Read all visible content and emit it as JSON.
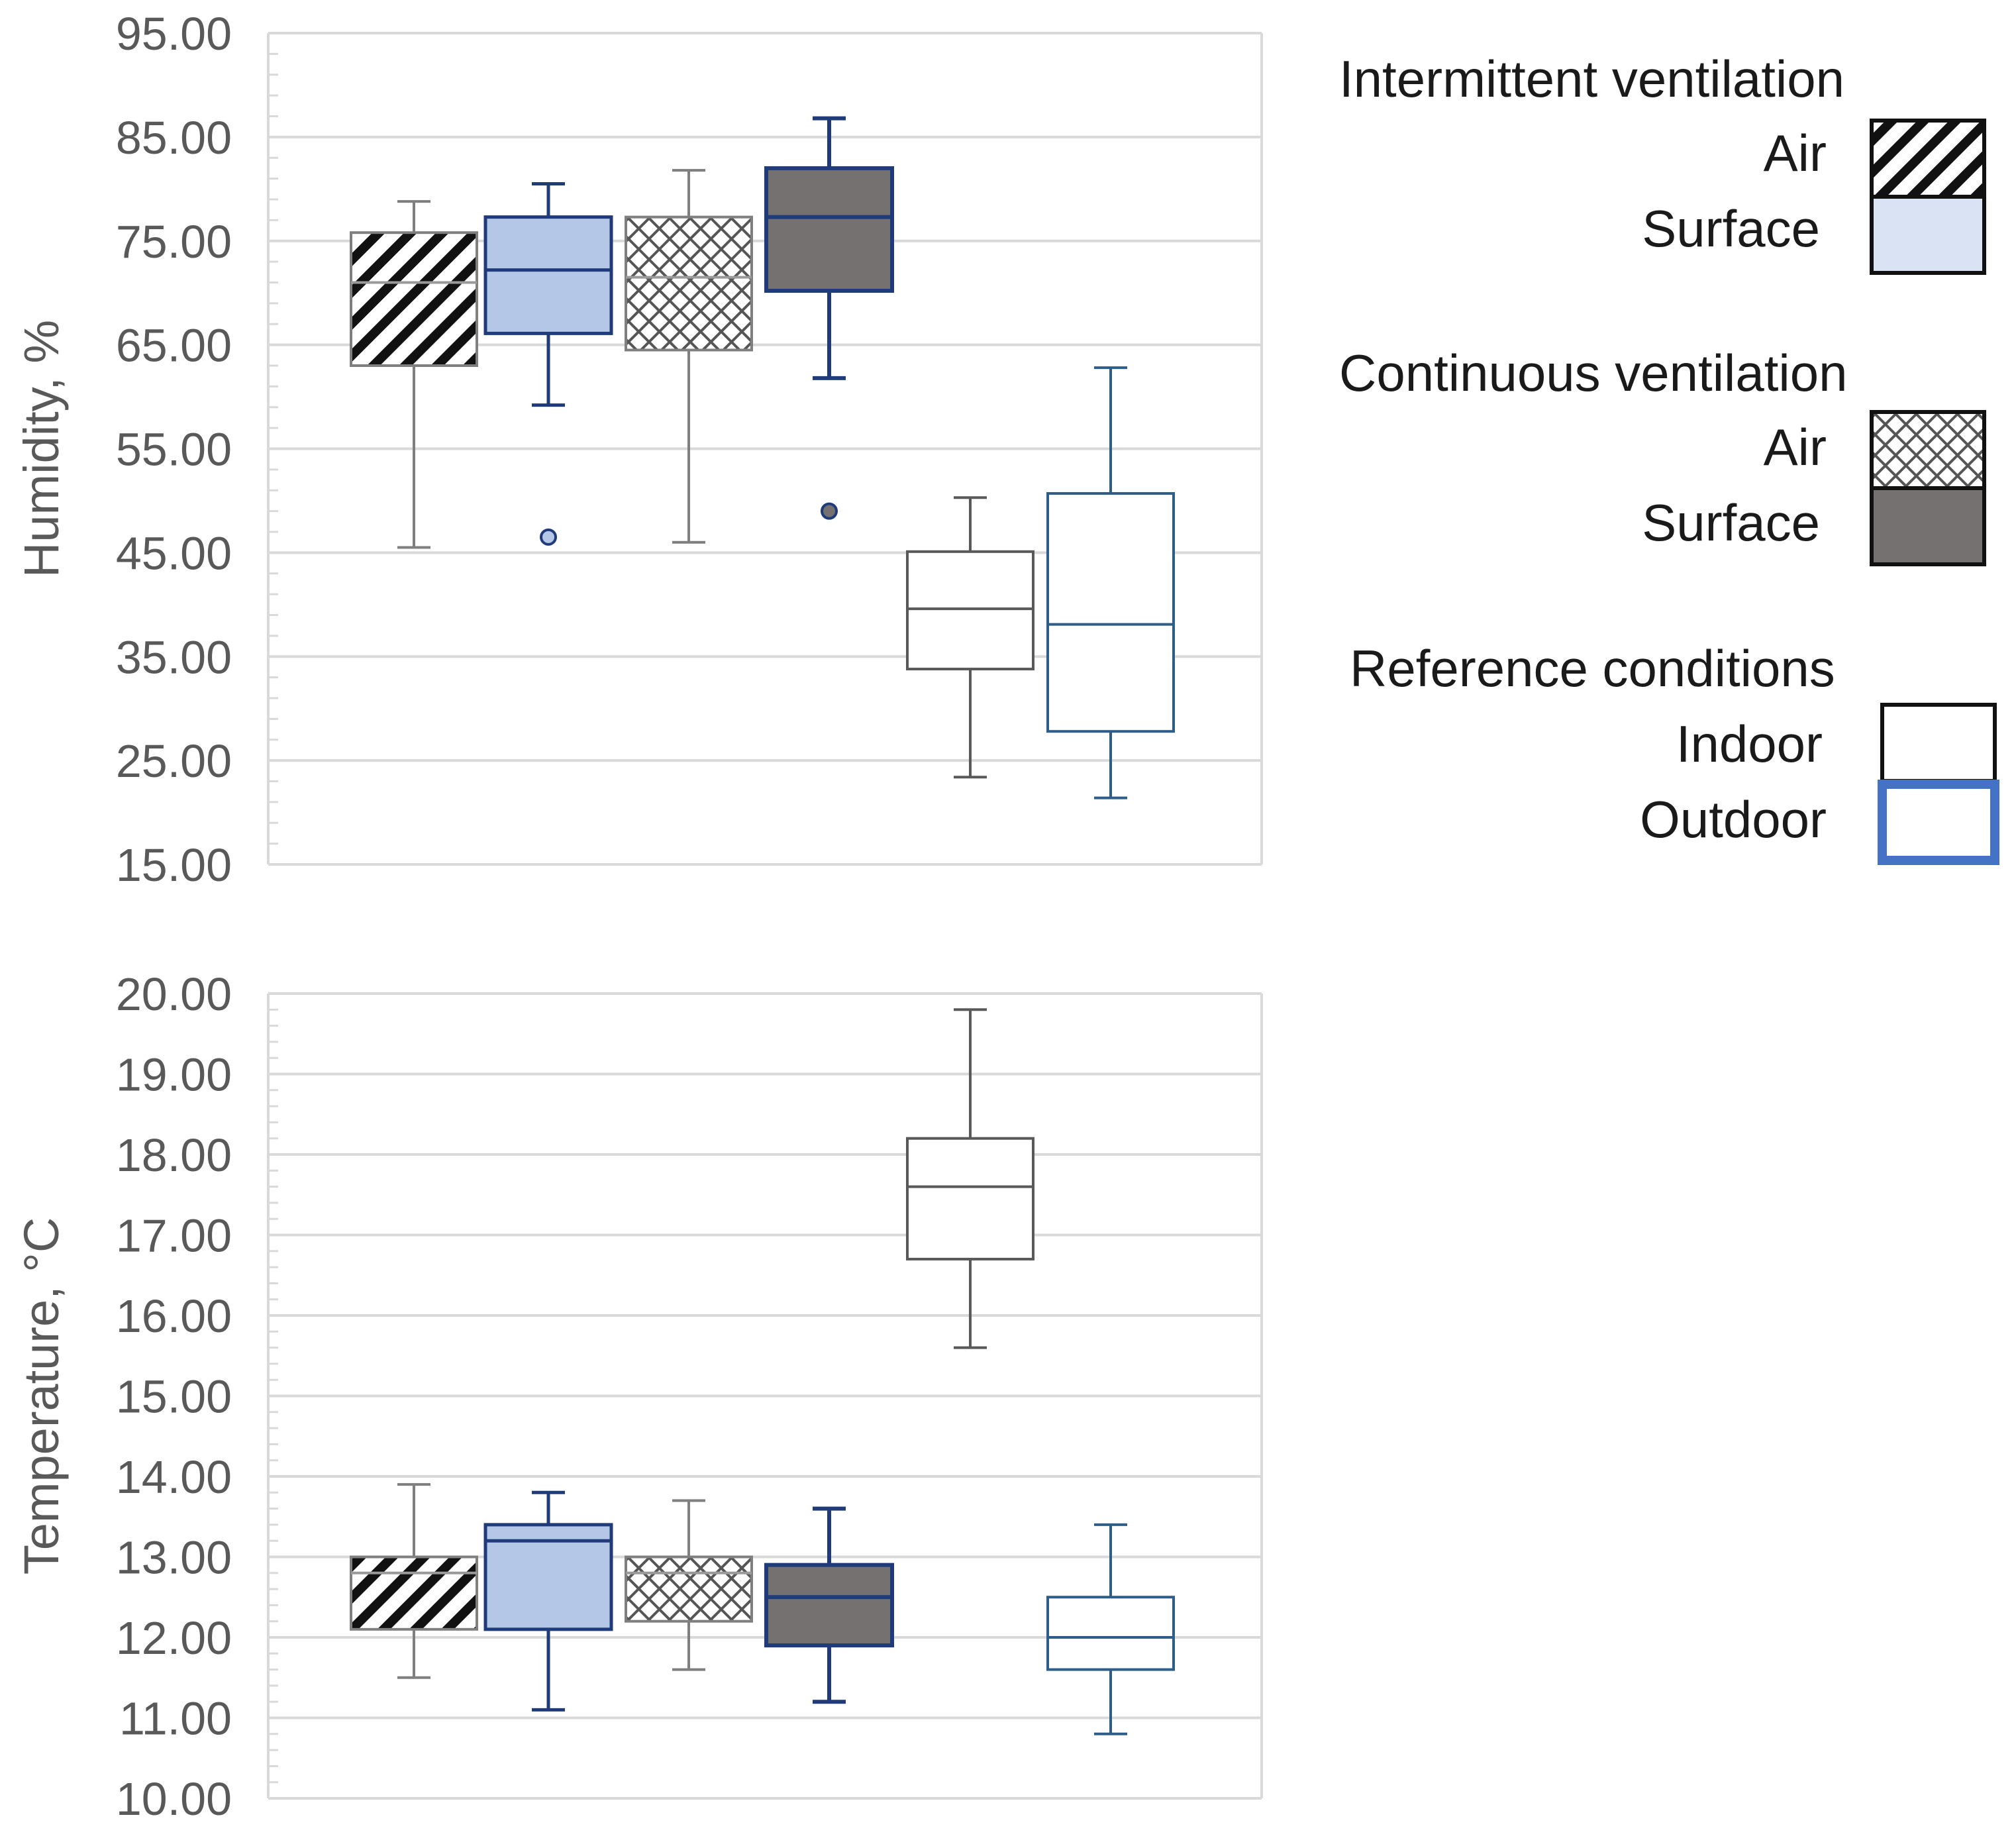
{
  "chart_data": [
    {
      "id": "humidity",
      "type": "box",
      "ylabel": "Humidity, %",
      "ylim": [
        15,
        95
      ],
      "yticks": [
        "15.00",
        "25.00",
        "35.00",
        "45.00",
        "55.00",
        "65.00",
        "75.00",
        "85.00",
        "95.00"
      ],
      "grid": true,
      "boxes": [
        {
          "group": "Intermittent ventilation",
          "name": "Air",
          "style": "int-air",
          "min": 45.5,
          "q1": 63.0,
          "median": 71.0,
          "q3": 75.8,
          "max": 78.8,
          "outliers": []
        },
        {
          "group": "Intermittent ventilation",
          "name": "Surface",
          "style": "int-surface",
          "min": 59.2,
          "q1": 66.1,
          "median": 72.2,
          "q3": 77.3,
          "max": 80.5,
          "outliers": [
            46.5
          ]
        },
        {
          "group": "Continuous ventilation",
          "name": "Air",
          "style": "cont-air",
          "min": 46.0,
          "q1": 64.5,
          "median": 71.5,
          "q3": 77.3,
          "max": 81.8,
          "outliers": []
        },
        {
          "group": "Continuous ventilation",
          "name": "Surface",
          "style": "cont-surface",
          "min": 61.8,
          "q1": 70.2,
          "median": 77.3,
          "q3": 82.0,
          "max": 86.8,
          "outliers": [
            49.0
          ]
        },
        {
          "group": "Reference conditions",
          "name": "Indoor",
          "style": "ref-indoor",
          "min": 23.4,
          "q1": 33.8,
          "median": 39.6,
          "q3": 45.1,
          "max": 50.3,
          "outliers": []
        },
        {
          "group": "Reference conditions",
          "name": "Outdoor",
          "style": "ref-outdoor",
          "min": 21.4,
          "q1": 27.8,
          "median": 38.1,
          "q3": 50.7,
          "max": 62.8,
          "outliers": []
        }
      ]
    },
    {
      "id": "temperature",
      "type": "box",
      "ylabel": "Temperature, °C",
      "ylim": [
        10,
        20
      ],
      "yticks": [
        "10.00",
        "11.00",
        "12.00",
        "13.00",
        "14.00",
        "15.00",
        "16.00",
        "17.00",
        "18.00",
        "19.00",
        "20.00"
      ],
      "grid": true,
      "boxes": [
        {
          "group": "Intermittent ventilation",
          "name": "Air",
          "style": "int-air",
          "min": 11.5,
          "q1": 12.1,
          "median": 12.8,
          "q3": 13.0,
          "max": 13.9,
          "outliers": []
        },
        {
          "group": "Intermittent ventilation",
          "name": "Surface",
          "style": "int-surface",
          "min": 11.1,
          "q1": 12.1,
          "median": 13.2,
          "q3": 13.4,
          "max": 13.8,
          "outliers": []
        },
        {
          "group": "Continuous ventilation",
          "name": "Air",
          "style": "cont-air",
          "min": 11.6,
          "q1": 12.2,
          "median": 12.8,
          "q3": 13.0,
          "max": 13.7,
          "outliers": []
        },
        {
          "group": "Continuous ventilation",
          "name": "Surface",
          "style": "cont-surface",
          "min": 11.2,
          "q1": 11.9,
          "median": 12.5,
          "q3": 12.9,
          "max": 13.6,
          "outliers": []
        },
        {
          "group": "Reference conditions",
          "name": "Indoor",
          "style": "ref-indoor",
          "min": 15.6,
          "q1": 16.7,
          "median": 17.6,
          "q3": 18.2,
          "max": 19.8,
          "outliers": []
        },
        {
          "group": "Reference conditions",
          "name": "Outdoor",
          "style": "ref-outdoor",
          "min": 10.8,
          "q1": 11.6,
          "median": 12.0,
          "q3": 12.5,
          "max": 13.4,
          "outliers": []
        }
      ]
    }
  ],
  "legend": {
    "placement": "top-right",
    "groups": [
      {
        "title": "Intermittent ventilation",
        "items": [
          {
            "label": "Air",
            "style": "int-air"
          },
          {
            "label": "Surface",
            "style": "int-surface"
          }
        ]
      },
      {
        "title": "Continuous ventilation",
        "items": [
          {
            "label": "Air",
            "style": "cont-air"
          },
          {
            "label": "Surface",
            "style": "cont-surface"
          }
        ]
      },
      {
        "title": "Reference conditions",
        "items": [
          {
            "label": "Indoor",
            "style": "ref-indoor"
          },
          {
            "label": "Outdoor",
            "style": "ref-outdoor"
          }
        ]
      }
    ]
  },
  "colors": {
    "grid": "#d9d9d9",
    "axis_text": "#595959",
    "gray_edge": "#7f7f7f",
    "navy_edge": "#1f3b7a",
    "light_blue_fill": "#b4c7e7",
    "dark_gray_fill": "#767171",
    "indoor_edge": "#595959",
    "outdoor_edge": "#2e5d8a",
    "legend_outdoor": "#4472c4"
  }
}
